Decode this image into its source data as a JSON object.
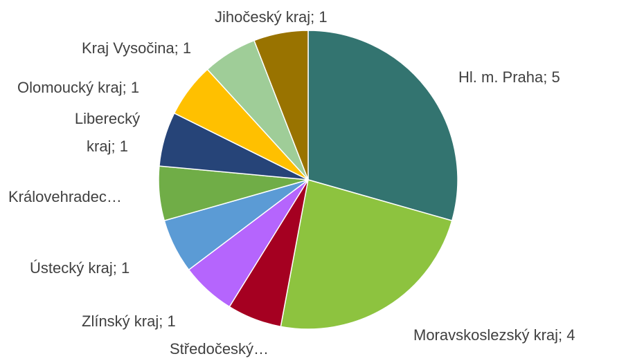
{
  "chart_data": {
    "type": "pie",
    "labels": [
      "Hl. m. Praha; 5",
      "Moravskoslezský kraj; 4",
      "Středočeský…",
      "Zlínský kraj; 1",
      "Ústecký kraj; 1",
      "Královehradec…",
      "Liberecký kraj; 1",
      "Olomoucký kraj; 1",
      "Kraj Vysočina; 1",
      "Jihočeský kraj; 1"
    ],
    "values": [
      5,
      4,
      1,
      1,
      1,
      1,
      1,
      1,
      1,
      1
    ],
    "colors": [
      "#337470",
      "#8dc33f",
      "#a50021",
      "#b565fd",
      "#5b9bd5",
      "#70ad47",
      "#264478",
      "#ffc000",
      "#9fcd98",
      "#997300"
    ]
  }
}
